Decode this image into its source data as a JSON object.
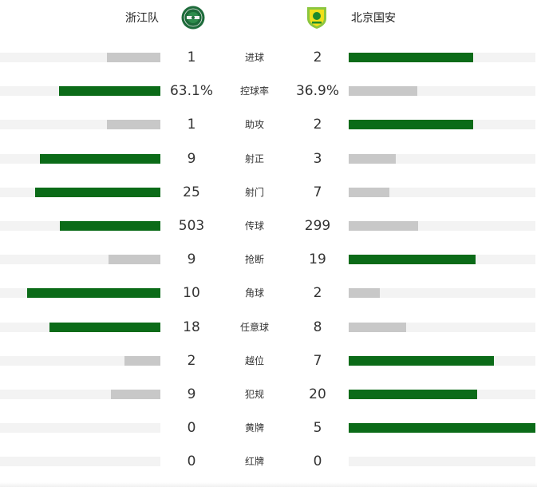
{
  "home": {
    "name": "浙江队"
  },
  "away": {
    "name": "北京国安"
  },
  "colors": {
    "win": "#0b6b18",
    "lose": "#c8c8c8",
    "track": "#f3f3f3"
  },
  "stats": [
    {
      "label": "进球",
      "home": "1",
      "away": "2",
      "home_share": 0.333,
      "away_share": 0.667
    },
    {
      "label": "控球率",
      "home": "63.1%",
      "away": "36.9%",
      "home_share": 0.631,
      "away_share": 0.369
    },
    {
      "label": "助攻",
      "home": "1",
      "away": "2",
      "home_share": 0.333,
      "away_share": 0.667
    },
    {
      "label": "射正",
      "home": "9",
      "away": "3",
      "home_share": 0.75,
      "away_share": 0.25
    },
    {
      "label": "射门",
      "home": "25",
      "away": "7",
      "home_share": 0.781,
      "away_share": 0.219
    },
    {
      "label": "传球",
      "home": "503",
      "away": "299",
      "home_share": 0.627,
      "away_share": 0.373
    },
    {
      "label": "抢断",
      "home": "9",
      "away": "19",
      "home_share": 0.321,
      "away_share": 0.679
    },
    {
      "label": "角球",
      "home": "10",
      "away": "2",
      "home_share": 0.833,
      "away_share": 0.167
    },
    {
      "label": "任意球",
      "home": "18",
      "away": "8",
      "home_share": 0.692,
      "away_share": 0.308
    },
    {
      "label": "越位",
      "home": "2",
      "away": "7",
      "home_share": 0.222,
      "away_share": 0.778
    },
    {
      "label": "犯规",
      "home": "9",
      "away": "20",
      "home_share": 0.31,
      "away_share": 0.69
    },
    {
      "label": "黄牌",
      "home": "0",
      "away": "5",
      "home_share": 0.0,
      "away_share": 1.0
    },
    {
      "label": "红牌",
      "home": "0",
      "away": "0",
      "home_share": 0.0,
      "away_share": 0.0
    }
  ]
}
